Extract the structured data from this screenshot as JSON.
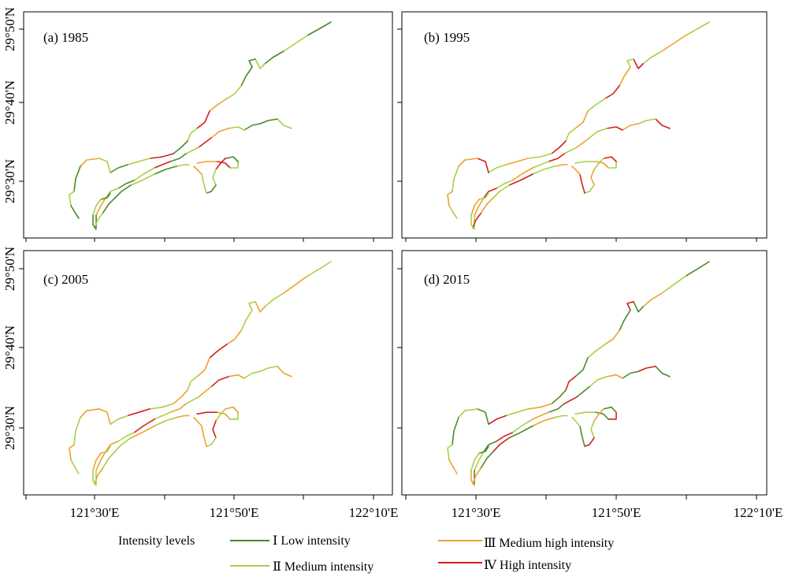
{
  "panels": [
    {
      "label": "(a) 1985"
    },
    {
      "label": "(b) 1995"
    },
    {
      "label": "(c) 2005"
    },
    {
      "label": "(d) 2015"
    }
  ],
  "axes": {
    "x_ticks": [
      "121°30'E",
      "121°50'E",
      "122°10'E"
    ],
    "y_ticks": [
      "29°50'N",
      "29°40'N",
      "29°30'N"
    ]
  },
  "legend": {
    "title": "Intensity levels",
    "items": [
      {
        "label": "Ⅰ Low intensity",
        "color": "#4a8a2a"
      },
      {
        "label": "Ⅱ Medium intensity",
        "color": "#a8d048"
      },
      {
        "label": "Ⅲ Medium high intensity",
        "color": "#f0a030"
      },
      {
        "label": "Ⅳ High intensity",
        "color": "#d42020"
      }
    ]
  },
  "intensity_pattern": {
    "a": [
      "I",
      "II",
      "I",
      "II",
      "I",
      "I",
      "II",
      "III",
      "IV",
      "II",
      "I",
      "IV",
      "II",
      "I",
      "II",
      "III"
    ],
    "b": [
      "II",
      "III",
      "II",
      "IV",
      "II",
      "III",
      "IV",
      "II",
      "III",
      "II",
      "IV",
      "II",
      "III",
      "II",
      "IV",
      "III"
    ],
    "c": [
      "II",
      "III",
      "II",
      "III",
      "II",
      "II",
      "III",
      "IV",
      "III",
      "II",
      "III",
      "II",
      "IV",
      "II",
      "III",
      "III"
    ],
    "d": [
      "I",
      "II",
      "III",
      "I",
      "IV",
      "I",
      "III",
      "II",
      "I",
      "IV",
      "I",
      "III",
      "II",
      "IV",
      "I",
      "II"
    ]
  }
}
